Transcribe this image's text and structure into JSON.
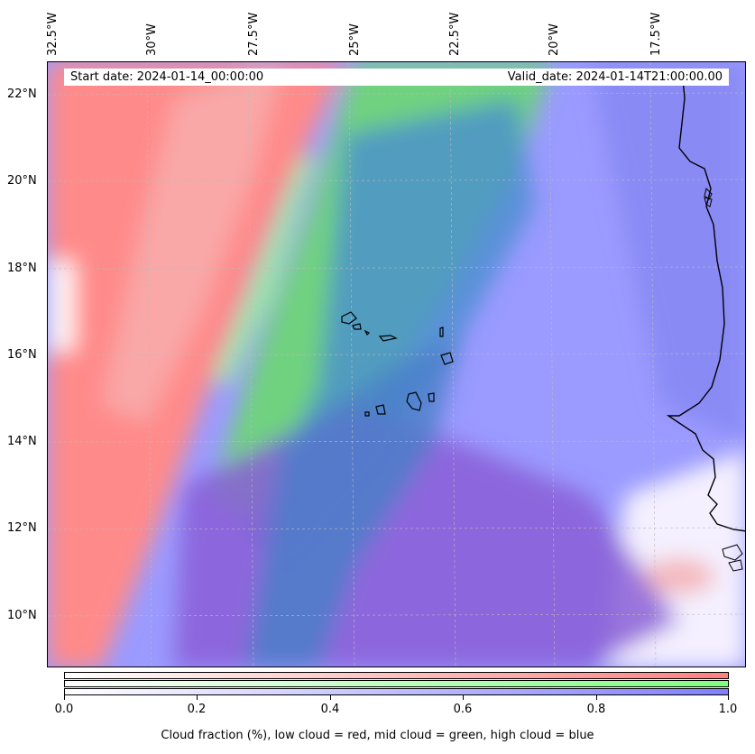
{
  "map": {
    "start_date": "Start date: 2024-01-14_00:00:00",
    "valid_date": "Valid_date: 2024-01-14T21:00:00.00",
    "lon_labels": [
      "32.5°W",
      "30°W",
      "27.5°W",
      "25°W",
      "22.5°W",
      "20°W",
      "17.5°W"
    ],
    "lat_labels": [
      "22°N",
      "20°N",
      "18°N",
      "16°N",
      "14°N",
      "12°N",
      "10°N"
    ],
    "layers": {
      "low_cloud_color": "#ff7f7f",
      "mid_cloud_color": "#7fff7f",
      "high_cloud_color": "#7f7fff"
    }
  },
  "colorbar": {
    "ticks": [
      "0.0",
      "0.2",
      "0.4",
      "0.6",
      "0.8",
      "1.0"
    ],
    "caption": "Cloud fraction (%), low cloud = red, mid cloud = green, high cloud = blue"
  }
}
